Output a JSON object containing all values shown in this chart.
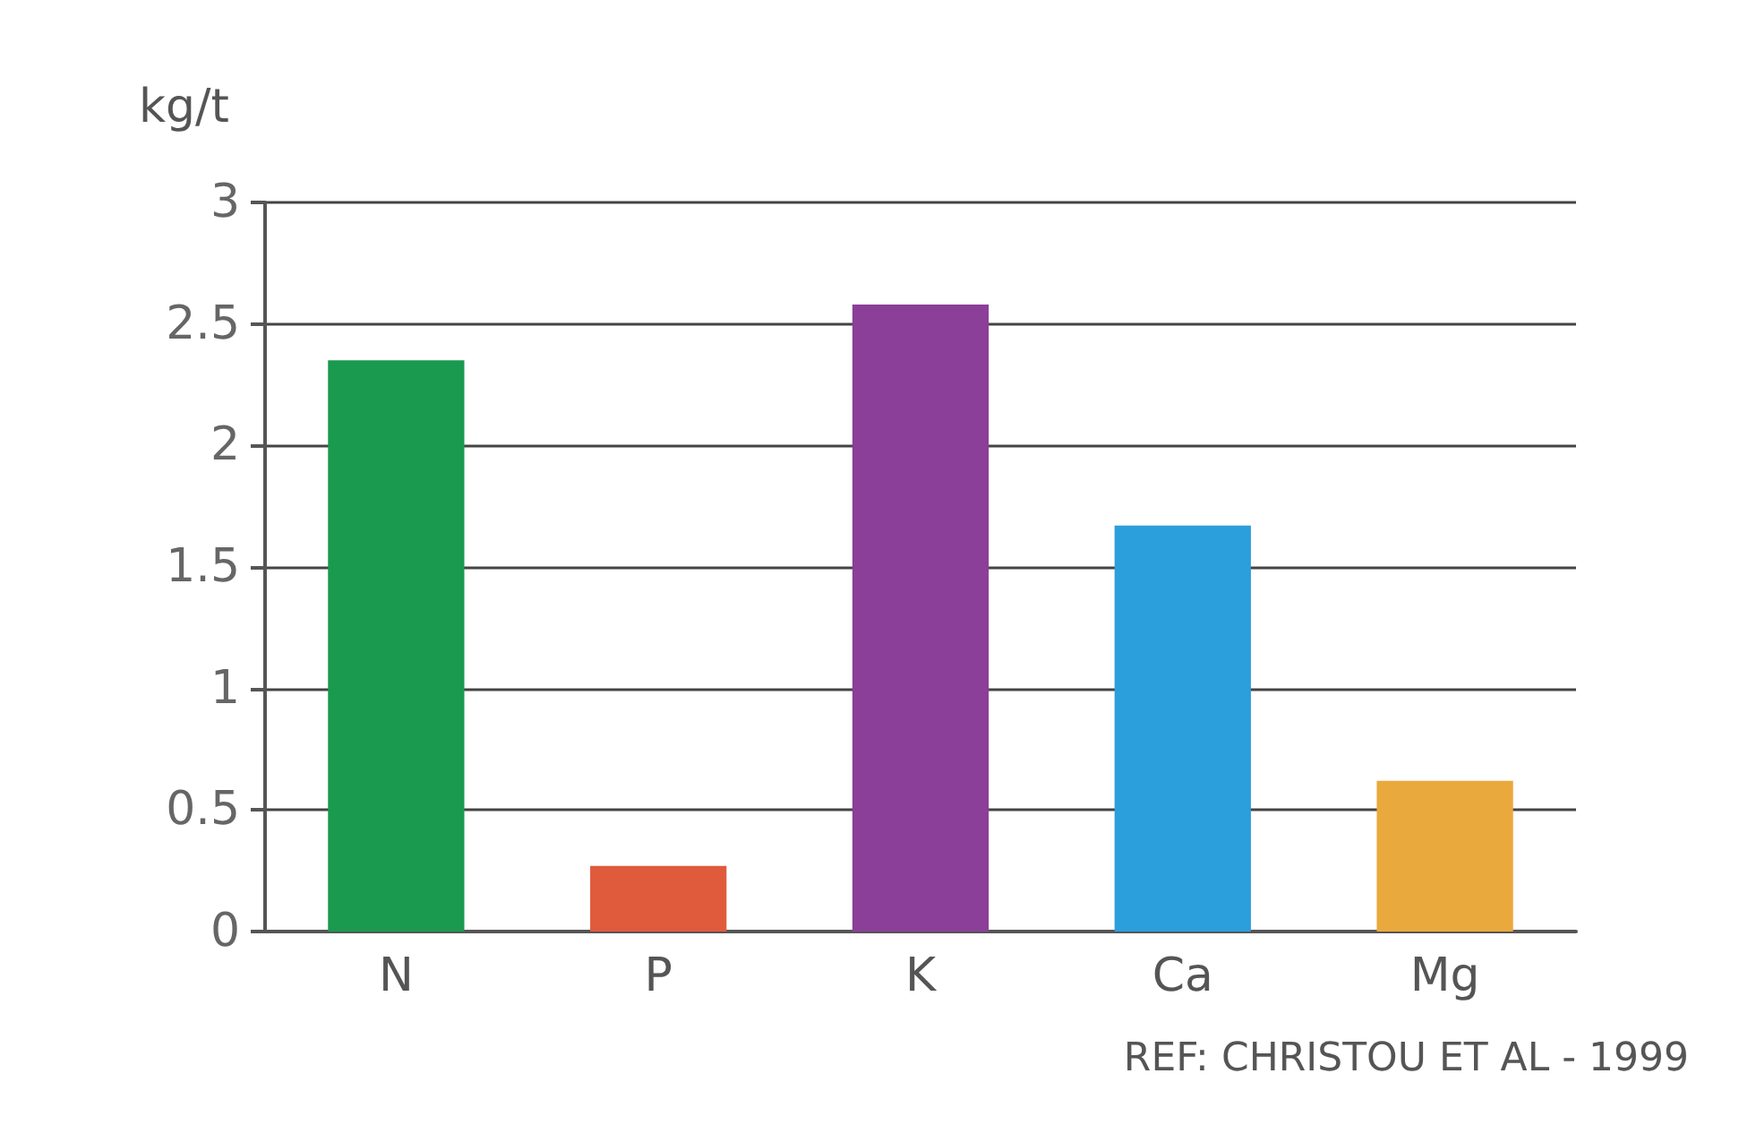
{
  "chart_data": {
    "type": "bar",
    "ylabel": "kg/t",
    "categories": [
      "N",
      "P",
      "K",
      "Ca",
      "Mg"
    ],
    "values": [
      2.35,
      0.27,
      2.58,
      1.67,
      0.62
    ],
    "colors": [
      "#1a9a4f",
      "#e05a3c",
      "#8b3f98",
      "#2a9fdc",
      "#eaa93c"
    ],
    "ylim": [
      0,
      3
    ],
    "yticks": [
      0,
      0.5,
      1,
      1.5,
      2,
      2.5,
      3
    ],
    "grid": "y",
    "annotations": [
      "REF: CHRISTOU ET AL - 1999"
    ]
  }
}
